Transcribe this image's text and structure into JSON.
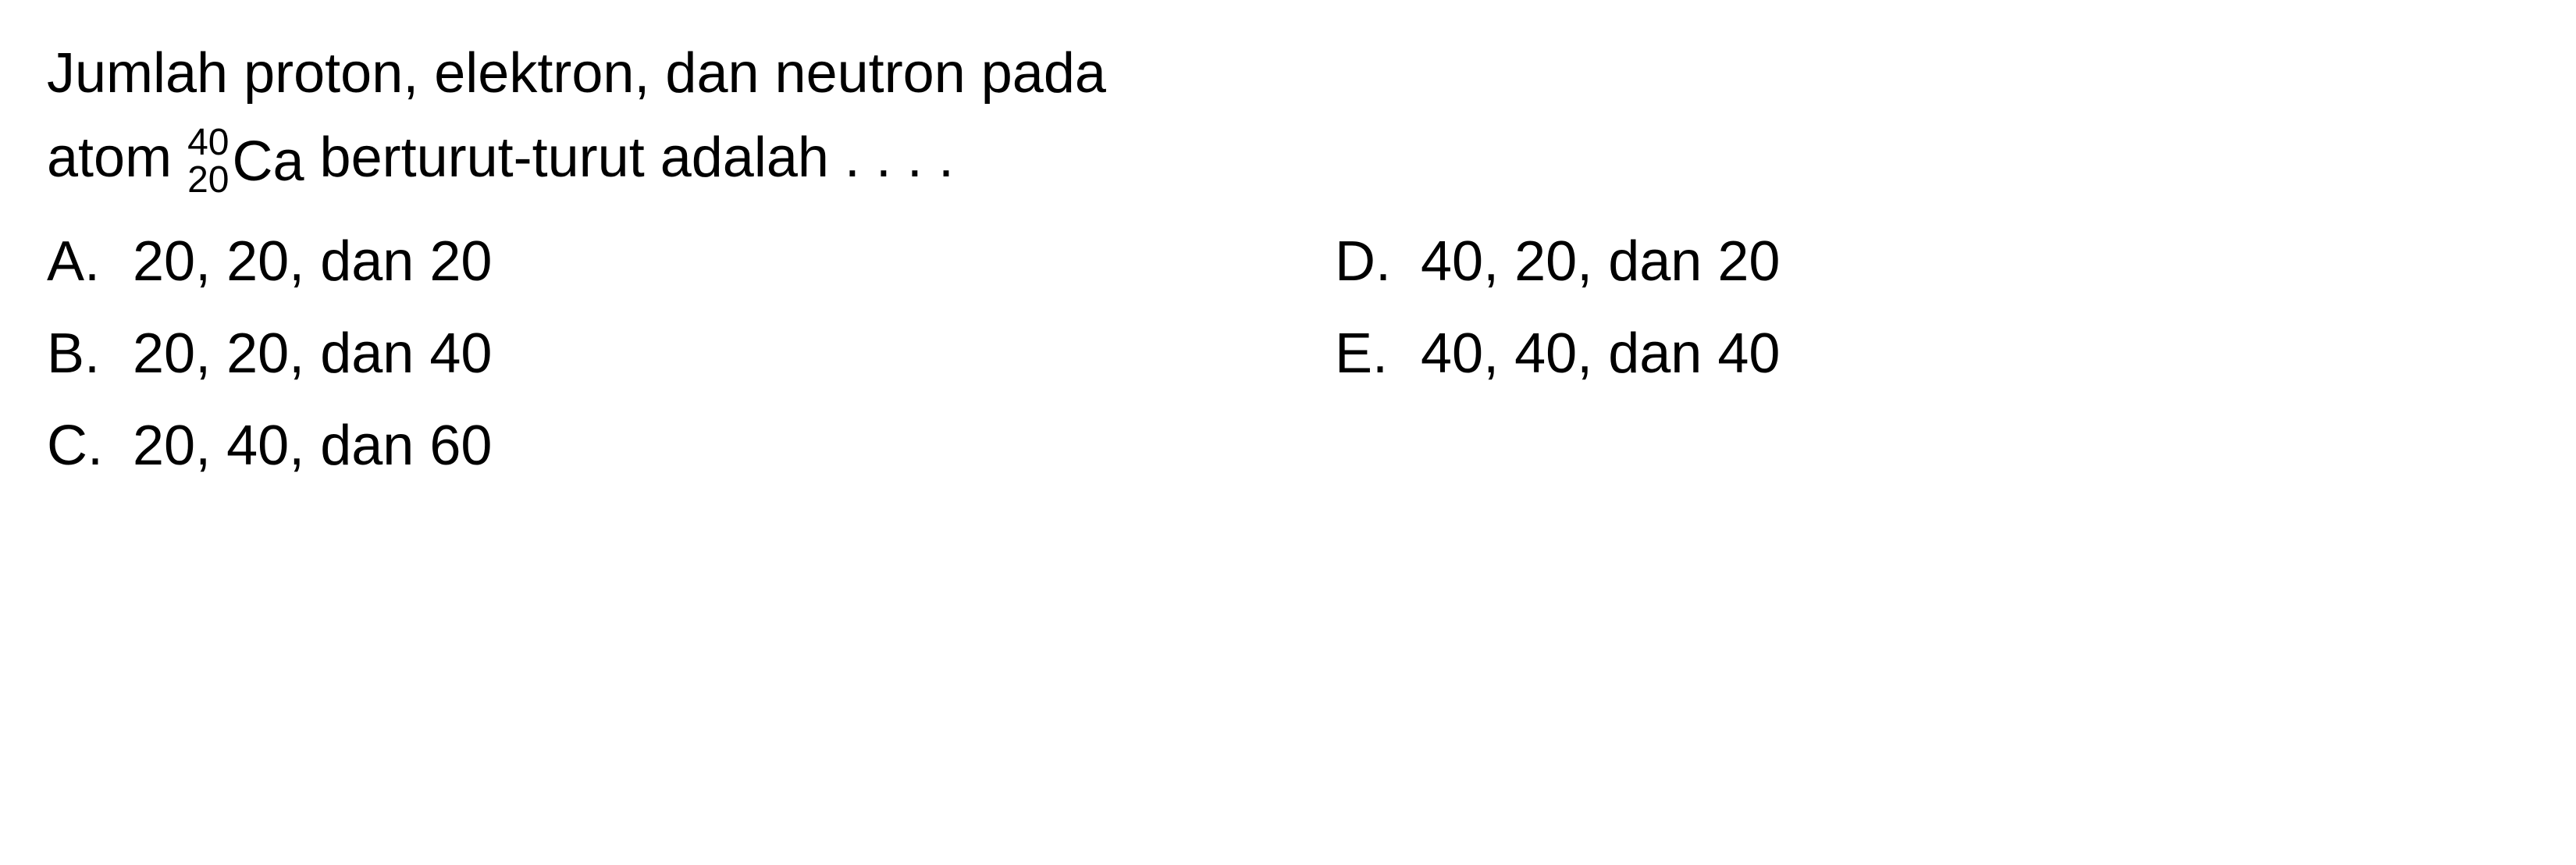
{
  "question": {
    "line1": "Jumlah proton, elektron, dan neutron pada",
    "line2_prefix": "atom ",
    "atom_mass": "40",
    "atom_number": "20",
    "atom_symbol": "Ca",
    "line2_suffix": " berturut-turut adalah . . . ."
  },
  "options": {
    "a": {
      "letter": "A.",
      "text": "20, 20, dan 20"
    },
    "b": {
      "letter": "B.",
      "text": "20, 20, dan 40"
    },
    "c": {
      "letter": "C.",
      "text": "20, 40, dan 60"
    },
    "d": {
      "letter": "D.",
      "text": "40, 20, dan 20"
    },
    "e": {
      "letter": "E.",
      "text": "40, 40, dan 40"
    }
  },
  "style": {
    "font_size_main": 72,
    "font_size_sub": 48,
    "text_color": "#000000",
    "background_color": "#ffffff"
  }
}
